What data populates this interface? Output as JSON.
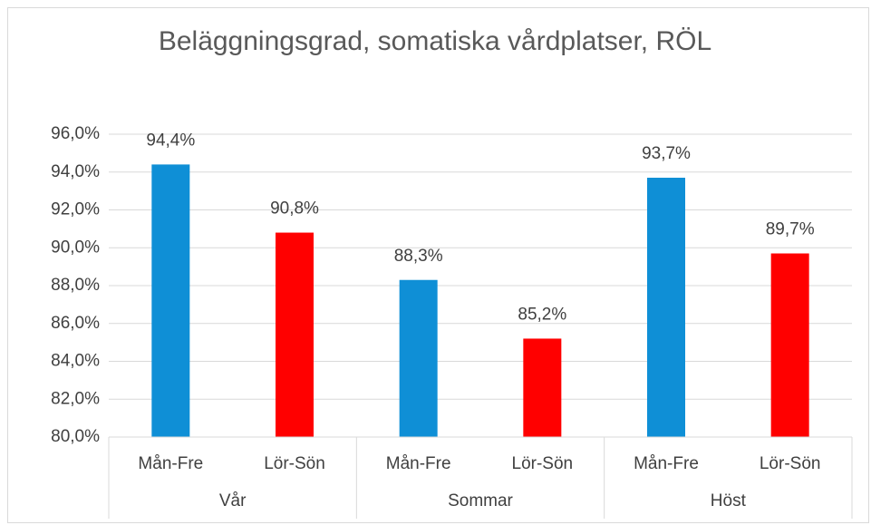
{
  "chart_data": {
    "type": "bar",
    "title": "Beläggningsgrad, somatiska vårdplatser, RÖL",
    "categories": [
      "Mån-Fre",
      "Lör-Sön",
      "Mån-Fre",
      "Lör-Sön",
      "Mån-Fre",
      "Lör-Sön"
    ],
    "groups": [
      "Vår",
      "Sommar",
      "Höst"
    ],
    "values": [
      94.4,
      90.8,
      88.3,
      85.2,
      93.7,
      89.7
    ],
    "value_labels": [
      "94,4%",
      "90,8%",
      "88,3%",
      "85,2%",
      "93,7%",
      "89,7%"
    ],
    "colors": [
      "#0f8fd6",
      "#ff0000",
      "#0f8fd6",
      "#ff0000",
      "#0f8fd6",
      "#ff0000"
    ],
    "ylim": [
      80,
      96
    ],
    "yticks": [
      {
        "value": 80,
        "label": "80,0%"
      },
      {
        "value": 82,
        "label": "82,0%"
      },
      {
        "value": 84,
        "label": "84,0%"
      },
      {
        "value": 86,
        "label": "86,0%"
      },
      {
        "value": 88,
        "label": "88,0%"
      },
      {
        "value": 90,
        "label": "90,0%"
      },
      {
        "value": 92,
        "label": "92,0%"
      },
      {
        "value": 94,
        "label": "94,0%"
      },
      {
        "value": 96,
        "label": "96,0%"
      }
    ],
    "grid": true
  }
}
